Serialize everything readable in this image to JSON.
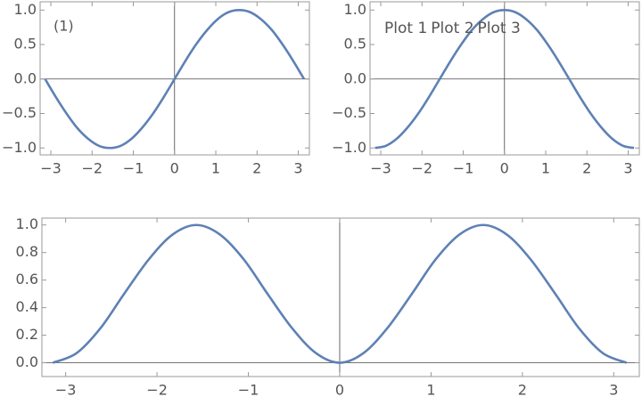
{
  "chart_data": [
    {
      "type": "line",
      "annotation": "(1)",
      "x": [
        -3.14,
        -2.88,
        -2.62,
        -2.36,
        -2.09,
        -1.83,
        -1.57,
        -1.31,
        -1.05,
        -0.79,
        -0.52,
        -0.26,
        0,
        0.26,
        0.52,
        0.79,
        1.05,
        1.31,
        1.57,
        1.83,
        2.09,
        2.36,
        2.62,
        2.88,
        3.14
      ],
      "series": [
        {
          "color": "#5e81b5",
          "values": [
            0,
            -0.26,
            -0.5,
            -0.71,
            -0.87,
            -0.97,
            -1,
            -0.97,
            -0.87,
            -0.71,
            -0.5,
            -0.26,
            0,
            0.26,
            0.5,
            0.71,
            0.87,
            0.97,
            1,
            0.97,
            0.87,
            0.71,
            0.5,
            0.26,
            0
          ]
        }
      ],
      "xlim": [
        -3.26,
        3.27
      ],
      "ylim": [
        -1.1,
        1.12
      ],
      "xticks": [
        {
          "value": -3,
          "label": "−3"
        },
        {
          "value": -2,
          "label": "−2"
        },
        {
          "value": -1,
          "label": "−1"
        },
        0,
        1,
        2,
        3
      ],
      "yticks": [
        {
          "value": -1,
          "label": "−1.0"
        },
        {
          "value": -0.5,
          "label": "−0.5"
        },
        {
          "value": 0,
          "label": "0.0"
        },
        0.5,
        {
          "value": 1,
          "label": "1.0"
        }
      ]
    },
    {
      "type": "line",
      "annotations": [
        "Plot 1",
        "Plot 2",
        "Plot 3"
      ],
      "x": [
        -3.14,
        -2.88,
        -2.62,
        -2.36,
        -2.09,
        -1.83,
        -1.57,
        -1.31,
        -1.05,
        -0.79,
        -0.52,
        -0.26,
        0,
        0.26,
        0.52,
        0.79,
        1.05,
        1.31,
        1.57,
        1.83,
        2.09,
        2.36,
        2.62,
        2.88,
        3.14
      ],
      "series": [
        {
          "color": "#5e81b5",
          "values": [
            -1,
            -0.97,
            -0.87,
            -0.71,
            -0.5,
            -0.26,
            0,
            0.26,
            0.5,
            0.71,
            0.87,
            0.97,
            1,
            0.97,
            0.87,
            0.71,
            0.5,
            0.26,
            0,
            -0.26,
            -0.5,
            -0.71,
            -0.87,
            -0.97,
            -1
          ]
        }
      ],
      "xlim": [
        -3.26,
        3.27
      ],
      "ylim": [
        -1.1,
        1.12
      ],
      "xticks": [
        {
          "value": -3,
          "label": "−3"
        },
        {
          "value": -2,
          "label": "−2"
        },
        {
          "value": -1,
          "label": "−1"
        },
        0,
        1,
        2,
        3
      ],
      "yticks": [
        {
          "value": -1,
          "label": "−1.0"
        },
        {
          "value": -0.5,
          "label": "−0.5"
        },
        {
          "value": 0,
          "label": "0.0"
        },
        0.5,
        {
          "value": 1,
          "label": "1.0"
        }
      ]
    },
    {
      "type": "line",
      "x": [
        -3.14,
        -2.88,
        -2.62,
        -2.36,
        -2.09,
        -1.83,
        -1.57,
        -1.31,
        -1.05,
        -0.79,
        -0.52,
        -0.26,
        0,
        0.26,
        0.52,
        0.79,
        1.05,
        1.31,
        1.57,
        1.83,
        2.09,
        2.36,
        2.62,
        2.88,
        3.14
      ],
      "series": [
        {
          "color": "#5e81b5",
          "values": [
            0,
            0.07,
            0.25,
            0.5,
            0.75,
            0.93,
            1,
            0.93,
            0.75,
            0.5,
            0.25,
            0.07,
            0,
            0.07,
            0.25,
            0.5,
            0.75,
            0.93,
            1,
            0.93,
            0.75,
            0.5,
            0.25,
            0.07,
            0
          ]
        }
      ],
      "xlim": [
        -3.26,
        3.28
      ],
      "ylim": [
        -0.1,
        1.05
      ],
      "xticks": [
        {
          "value": -3,
          "label": "−3"
        },
        {
          "value": -2,
          "label": "−2"
        },
        {
          "value": -1,
          "label": "−1"
        },
        0,
        1,
        2,
        3
      ],
      "yticks": [
        {
          "value": 0,
          "label": "0.0"
        },
        0.2,
        0.4,
        0.6,
        0.8,
        {
          "value": 1,
          "label": "1.0"
        }
      ]
    }
  ]
}
